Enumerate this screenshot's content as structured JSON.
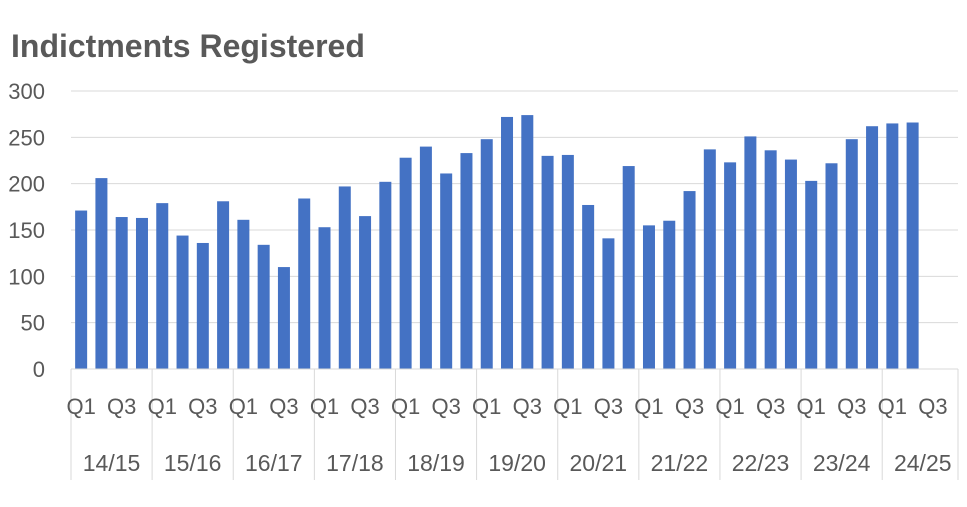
{
  "chart_data": {
    "type": "bar",
    "title": "Indictments Registered",
    "xlabel": "",
    "ylabel": "",
    "ylim": [
      0,
      300
    ],
    "yticks": [
      0,
      50,
      100,
      150,
      200,
      250,
      300
    ],
    "grid": true,
    "legend": "none",
    "bar_color": "#4472C4",
    "groups": [
      {
        "year": "14/15",
        "quarter_labels": [
          "Q1",
          "Q3"
        ],
        "values": [
          171,
          206,
          164,
          163
        ]
      },
      {
        "year": "15/16",
        "quarter_labels": [
          "Q1",
          "Q3"
        ],
        "values": [
          179,
          144,
          136,
          181
        ]
      },
      {
        "year": "16/17",
        "quarter_labels": [
          "Q1",
          "Q3"
        ],
        "values": [
          161,
          134,
          110,
          184
        ]
      },
      {
        "year": "17/18",
        "quarter_labels": [
          "Q1",
          "Q3"
        ],
        "values": [
          153,
          197,
          165,
          202
        ]
      },
      {
        "year": "18/19",
        "quarter_labels": [
          "Q1",
          "Q3"
        ],
        "values": [
          228,
          240,
          211,
          233
        ]
      },
      {
        "year": "19/20",
        "quarter_labels": [
          "Q1",
          "Q3"
        ],
        "values": [
          248,
          272,
          274,
          230
        ]
      },
      {
        "year": "20/21",
        "quarter_labels": [
          "Q1",
          "Q3"
        ],
        "values": [
          231,
          177,
          141,
          219
        ]
      },
      {
        "year": "21/22",
        "quarter_labels": [
          "Q1",
          "Q3"
        ],
        "values": [
          155,
          160,
          192,
          237
        ]
      },
      {
        "year": "22/23",
        "quarter_labels": [
          "Q1",
          "Q3"
        ],
        "values": [
          223,
          251,
          236,
          226
        ]
      },
      {
        "year": "23/24",
        "quarter_labels": [
          "Q1",
          "Q3"
        ],
        "values": [
          203,
          222,
          248,
          262
        ]
      },
      {
        "year": "24/25",
        "quarter_labels": [
          "Q1",
          "Q3"
        ],
        "values": [
          265,
          266
        ]
      }
    ]
  }
}
